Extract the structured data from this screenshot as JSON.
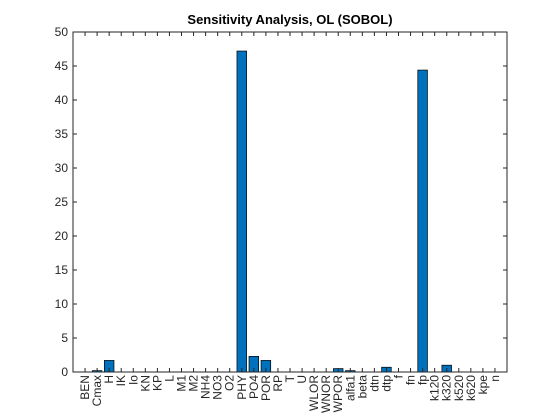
{
  "chart_data": {
    "type": "bar",
    "title": "Sensitivity Analysis, OL (SOBOL)",
    "xlabel": "",
    "ylabel": "",
    "ylim": [
      0,
      50
    ],
    "yticks": [
      0,
      5,
      10,
      15,
      20,
      25,
      30,
      35,
      40,
      45,
      50
    ],
    "grid": false,
    "legend": "none",
    "bar_color": "#0072BD",
    "categories": [
      "BEN",
      "Cmax",
      "H",
      "IK",
      "Io",
      "KN",
      "KP",
      "L",
      "M1",
      "M2",
      "NH4",
      "NO3",
      "O2",
      "PHY",
      "PO4",
      "POR",
      "RP",
      "T",
      "U",
      "WLOR",
      "WNOR",
      "WPOR",
      "alfa1",
      "beta",
      "dtn",
      "dtp",
      "f",
      "fn",
      "fp",
      "k120",
      "k320",
      "k520",
      "k620",
      "kpe",
      "n"
    ],
    "values": [
      0,
      0.2,
      1.7,
      0,
      0,
      0,
      0,
      0,
      0,
      0,
      0,
      0,
      0,
      47.2,
      2.3,
      1.7,
      0,
      0,
      0,
      0,
      0,
      0.5,
      0.2,
      0,
      0,
      0.7,
      0,
      0,
      44.4,
      0,
      1.0,
      0,
      0,
      0,
      0
    ]
  }
}
